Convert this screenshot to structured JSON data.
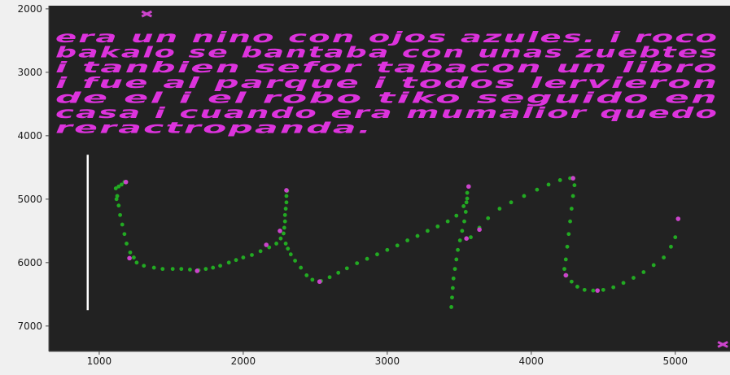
{
  "chart_data": {
    "type": "scatter",
    "title": "",
    "xlabel": "",
    "ylabel": "",
    "xlim": [
      650,
      5380
    ],
    "ylim": [
      7400,
      1950
    ],
    "y_inverted": true,
    "grid": false,
    "x_ticks": [
      1000,
      2000,
      3000,
      4000,
      5000
    ],
    "y_ticks": [
      2000,
      3000,
      4000,
      5000,
      6000,
      7000
    ],
    "colors": {
      "background": "#222222",
      "points": "#22aa22",
      "highlight": "#cc44cc",
      "cursor_line": "#ffffff",
      "text": "#dd33dd"
    },
    "cursor_line": {
      "x": 920,
      "y_from": 4300,
      "y_to": 6750
    },
    "markers": [
      {
        "x": 1330,
        "y": 2080
      },
      {
        "x": 5330,
        "y": 7290
      }
    ],
    "handwriting_lines": [
      "era un nino con ojos azules. i roco",
      "bakalo se bantaba con unas zuebtes",
      "i tanbien sefor tabacon un libro",
      "i fue al parque i todos lervieron",
      "de el i el robo tiko seguido en",
      "casa i cuando era mumalior quedo",
      "reractropanda."
    ],
    "series": [
      {
        "points": [
          [
            1120,
            5000
          ],
          [
            1115,
            4830
          ],
          [
            1135,
            4800
          ],
          [
            1155,
            4770
          ],
          [
            1175,
            4730
          ],
          [
            1125,
            4950
          ],
          [
            1135,
            5100
          ],
          [
            1145,
            5250
          ],
          [
            1160,
            5400
          ],
          [
            1175,
            5550
          ],
          [
            1190,
            5700
          ],
          [
            1215,
            5840
          ],
          [
            1240,
            5920
          ],
          [
            1260,
            6000
          ],
          [
            1310,
            6050
          ],
          [
            1380,
            6080
          ],
          [
            1440,
            6100
          ],
          [
            1510,
            6100
          ],
          [
            1570,
            6100
          ],
          [
            1630,
            6110
          ],
          [
            1690,
            6120
          ],
          [
            1740,
            6100
          ],
          [
            1790,
            6080
          ],
          [
            1840,
            6050
          ],
          [
            1900,
            6000
          ],
          [
            1950,
            5960
          ],
          [
            2000,
            5920
          ],
          [
            2060,
            5880
          ],
          [
            2120,
            5820
          ],
          [
            2180,
            5760
          ],
          [
            2230,
            5700
          ],
          [
            2260,
            5620
          ],
          [
            2280,
            5540
          ],
          [
            2285,
            5450
          ],
          [
            2290,
            5350
          ],
          [
            2290,
            5250
          ],
          [
            2295,
            5150
          ],
          [
            2300,
            5050
          ],
          [
            2300,
            4950
          ],
          [
            2305,
            4870
          ],
          [
            2295,
            5700
          ],
          [
            2310,
            5780
          ],
          [
            2330,
            5870
          ],
          [
            2360,
            5970
          ],
          [
            2400,
            6080
          ],
          [
            2440,
            6200
          ],
          [
            2480,
            6270
          ],
          [
            2540,
            6290
          ],
          [
            2600,
            6230
          ],
          [
            2660,
            6160
          ],
          [
            2720,
            6090
          ],
          [
            2790,
            6010
          ],
          [
            2860,
            5940
          ],
          [
            2930,
            5870
          ],
          [
            3000,
            5800
          ],
          [
            3070,
            5730
          ],
          [
            3140,
            5650
          ],
          [
            3210,
            5580
          ],
          [
            3280,
            5500
          ],
          [
            3350,
            5430
          ],
          [
            3420,
            5350
          ],
          [
            3480,
            5260
          ],
          [
            3530,
            5110
          ],
          [
            3555,
            4990
          ],
          [
            3555,
            4900
          ],
          [
            3550,
            5050
          ],
          [
            3545,
            5200
          ],
          [
            3535,
            5350
          ],
          [
            3520,
            5500
          ],
          [
            3505,
            5650
          ],
          [
            3490,
            5800
          ],
          [
            3480,
            5950
          ],
          [
            3470,
            6100
          ],
          [
            3460,
            6250
          ],
          [
            3455,
            6400
          ],
          [
            3450,
            6550
          ],
          [
            3445,
            6700
          ],
          [
            3580,
            5600
          ],
          [
            3640,
            5450
          ],
          [
            3700,
            5300
          ],
          [
            3780,
            5150
          ],
          [
            3860,
            5050
          ],
          [
            3950,
            4950
          ],
          [
            4040,
            4850
          ],
          [
            4120,
            4770
          ],
          [
            4200,
            4700
          ],
          [
            4270,
            4670
          ],
          [
            4300,
            4780
          ],
          [
            4290,
            4950
          ],
          [
            4280,
            5150
          ],
          [
            4270,
            5350
          ],
          [
            4260,
            5550
          ],
          [
            4250,
            5750
          ],
          [
            4240,
            5950
          ],
          [
            4230,
            6100
          ],
          [
            4245,
            6200
          ],
          [
            4280,
            6300
          ],
          [
            4320,
            6380
          ],
          [
            4370,
            6430
          ],
          [
            4430,
            6440
          ],
          [
            4500,
            6430
          ],
          [
            4570,
            6390
          ],
          [
            4640,
            6320
          ],
          [
            4710,
            6240
          ],
          [
            4780,
            6150
          ],
          [
            4850,
            6040
          ],
          [
            4920,
            5920
          ],
          [
            4970,
            5750
          ],
          [
            5000,
            5600
          ]
        ]
      },
      {
        "name": "",
        "points": [
          [
            1185,
            4730
          ],
          [
            1210,
            5930
          ],
          [
            1680,
            6130
          ],
          [
            2300,
            4860
          ],
          [
            2160,
            5720
          ],
          [
            2255,
            5500
          ],
          [
            2530,
            6300
          ],
          [
            3565,
            4800
          ],
          [
            3550,
            5620
          ],
          [
            3640,
            5480
          ],
          [
            4290,
            4670
          ],
          [
            4240,
            6200
          ],
          [
            4460,
            6440
          ],
          [
            5020,
            5310
          ]
        ]
      }
    ]
  }
}
